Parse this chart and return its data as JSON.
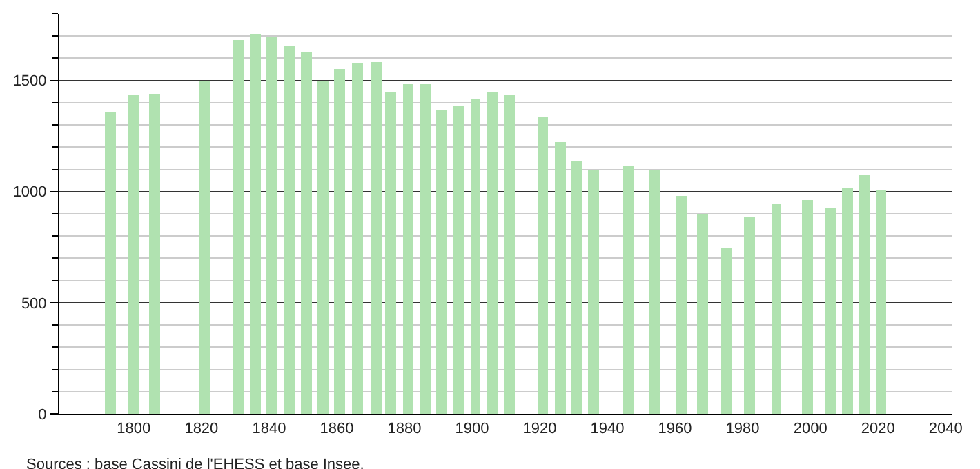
{
  "chart_data": {
    "type": "bar",
    "x": [
      1793,
      1800,
      1806,
      1821,
      1831,
      1836,
      1841,
      1846,
      1851,
      1856,
      1861,
      1866,
      1872,
      1876,
      1881,
      1886,
      1891,
      1896,
      1901,
      1906,
      1911,
      1921,
      1926,
      1931,
      1936,
      1946,
      1954,
      1962,
      1968,
      1975,
      1982,
      1990,
      1999,
      2006,
      2011,
      2016,
      2021
    ],
    "values": [
      1357,
      1431,
      1437,
      1498,
      1680,
      1705,
      1697,
      1655,
      1624,
      1498,
      1549,
      1575,
      1581,
      1446,
      1481,
      1481,
      1365,
      1384,
      1413,
      1446,
      1432,
      1332,
      1224,
      1133,
      1098,
      1120,
      1098,
      983,
      898,
      747,
      890,
      946,
      959,
      927,
      1015,
      1071,
      1008
    ],
    "color": "#b0e2b0",
    "xlim": [
      1778,
      2042
    ],
    "xticks": [
      1800,
      1820,
      1840,
      1860,
      1880,
      1900,
      1920,
      1940,
      1960,
      1980,
      2000,
      2020,
      2040
    ],
    "ylim": [
      0,
      1800
    ],
    "yticks": [
      0,
      500,
      1000,
      1500
    ],
    "grid": "y",
    "annotations": [
      "Sources : base Cassini de l'EHESS et base Insee."
    ]
  }
}
